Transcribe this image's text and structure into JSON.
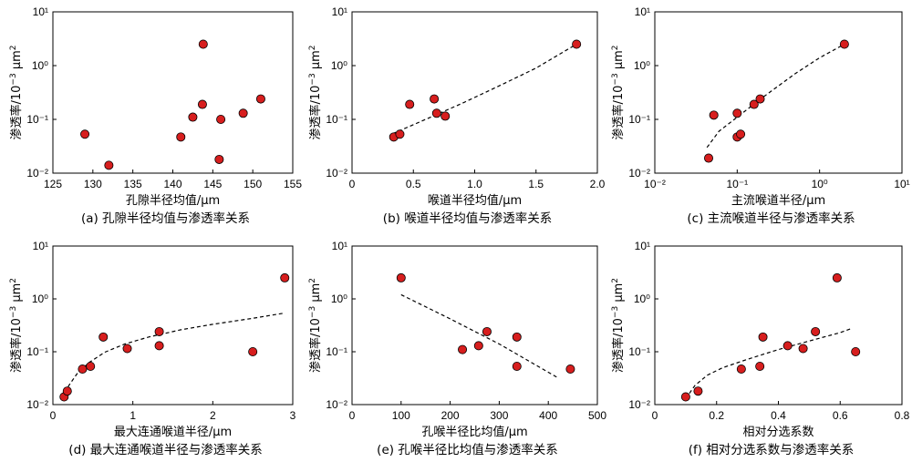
{
  "colors": {
    "point_fill": "#d71e1e",
    "axis": "#000000",
    "fit_line": "#000000"
  },
  "ylabel_parts": {
    "base": "渗透率/10",
    "exp": "−3",
    "unit": " μm",
    "unit_exp": "2"
  },
  "chart_data": [
    {
      "type": "scatter",
      "panel": "a",
      "caption": "(a) 孔隙半径均值与渗透率关系",
      "xlabel": "孔隙半径均值/μm",
      "xscale": "linear",
      "xlim": [
        125,
        155
      ],
      "xticks": [
        125,
        130,
        135,
        140,
        145,
        150,
        155
      ],
      "xtick_labels": [
        "125",
        "130",
        "135",
        "140",
        "145",
        "150",
        "155"
      ],
      "yscale": "log",
      "ylim": [
        0.01,
        10
      ],
      "points": [
        {
          "x": 129.0,
          "y": 0.053
        },
        {
          "x": 132.0,
          "y": 0.014
        },
        {
          "x": 141.0,
          "y": 0.047
        },
        {
          "x": 142.5,
          "y": 0.11
        },
        {
          "x": 143.8,
          "y": 2.5
        },
        {
          "x": 143.7,
          "y": 0.19
        },
        {
          "x": 145.8,
          "y": 0.018
        },
        {
          "x": 146.0,
          "y": 0.1
        },
        {
          "x": 148.8,
          "y": 0.13
        },
        {
          "x": 151.0,
          "y": 0.24
        }
      ],
      "fit": null
    },
    {
      "type": "scatter",
      "panel": "b",
      "caption": "(b) 喉道半径均值与渗透率关系",
      "xlabel": "喉道半径均值/μm",
      "xscale": "linear",
      "xlim": [
        0,
        2.0
      ],
      "xticks": [
        0,
        0.5,
        1.0,
        1.5,
        2.0
      ],
      "xtick_labels": [
        "0",
        "0.5",
        "1.0",
        "1.5",
        "2.0"
      ],
      "yscale": "log",
      "ylim": [
        0.01,
        10
      ],
      "points": [
        {
          "x": 0.34,
          "y": 0.047
        },
        {
          "x": 0.39,
          "y": 0.053
        },
        {
          "x": 0.47,
          "y": 0.19
        },
        {
          "x": 0.67,
          "y": 0.24
        },
        {
          "x": 0.69,
          "y": 0.13
        },
        {
          "x": 0.76,
          "y": 0.115
        },
        {
          "x": 1.83,
          "y": 2.5
        }
      ],
      "fit": {
        "x": [
          0.33,
          0.6,
          0.9,
          1.2,
          1.5,
          1.83
        ],
        "y": [
          0.054,
          0.1,
          0.2,
          0.42,
          0.9,
          2.5
        ]
      }
    },
    {
      "type": "scatter",
      "panel": "c",
      "caption": "(c) 主流喉道半径与渗透率关系",
      "xlabel": "主流喉道半径/μm",
      "xscale": "log",
      "xlim": [
        0.01,
        10
      ],
      "xticks": [
        0.01,
        0.1,
        1,
        10
      ],
      "xtick_labels": [
        "10⁻²",
        "10⁻¹",
        "10⁰",
        "10¹"
      ],
      "yscale": "log",
      "ylim": [
        0.01,
        10
      ],
      "points": [
        {
          "x": 0.045,
          "y": 0.019
        },
        {
          "x": 0.052,
          "y": 0.12
        },
        {
          "x": 0.1,
          "y": 0.13
        },
        {
          "x": 0.1,
          "y": 0.047
        },
        {
          "x": 0.11,
          "y": 0.053
        },
        {
          "x": 0.16,
          "y": 0.19
        },
        {
          "x": 0.19,
          "y": 0.24
        },
        {
          "x": 2.0,
          "y": 2.5
        }
      ],
      "fit": {
        "x": [
          0.043,
          0.06,
          0.1,
          0.2,
          0.5,
          1.0,
          2.0
        ],
        "y": [
          0.03,
          0.06,
          0.11,
          0.25,
          0.7,
          1.4,
          2.5
        ]
      }
    },
    {
      "type": "scatter",
      "panel": "d",
      "caption": "(d) 最大连通喉道半径与渗透率关系",
      "xlabel": "最大连通喉道半径/μm",
      "xscale": "linear",
      "xlim": [
        0,
        3
      ],
      "xticks": [
        0,
        1,
        2,
        3
      ],
      "xtick_labels": [
        "0",
        "1",
        "2",
        "3"
      ],
      "yscale": "log",
      "ylim": [
        0.01,
        10
      ],
      "points": [
        {
          "x": 0.14,
          "y": 0.014
        },
        {
          "x": 0.18,
          "y": 0.018
        },
        {
          "x": 0.37,
          "y": 0.047
        },
        {
          "x": 0.47,
          "y": 0.053
        },
        {
          "x": 0.63,
          "y": 0.19
        },
        {
          "x": 0.93,
          "y": 0.115
        },
        {
          "x": 1.33,
          "y": 0.24
        },
        {
          "x": 1.33,
          "y": 0.13
        },
        {
          "x": 2.5,
          "y": 0.1
        },
        {
          "x": 2.9,
          "y": 2.5
        }
      ],
      "fit": {
        "x": [
          0.13,
          0.2,
          0.3,
          0.45,
          0.65,
          0.9,
          1.2,
          1.6,
          2.0,
          2.5,
          2.9
        ],
        "y": [
          0.013,
          0.023,
          0.038,
          0.062,
          0.098,
          0.14,
          0.19,
          0.26,
          0.33,
          0.43,
          0.54
        ]
      }
    },
    {
      "type": "scatter",
      "panel": "e",
      "caption": "(e) 孔喉半径比均值与渗透率关系",
      "xlabel": "孔喉半径比均值/μm",
      "xscale": "linear",
      "xlim": [
        0,
        500
      ],
      "xticks": [
        0,
        100,
        200,
        300,
        400,
        500
      ],
      "xtick_labels": [
        "0",
        "100",
        "200",
        "300",
        "400",
        "500"
      ],
      "yscale": "log",
      "ylim": [
        0.01,
        10
      ],
      "points": [
        {
          "x": 100,
          "y": 2.5
        },
        {
          "x": 225,
          "y": 0.11
        },
        {
          "x": 258,
          "y": 0.13
        },
        {
          "x": 275,
          "y": 0.24
        },
        {
          "x": 336,
          "y": 0.19
        },
        {
          "x": 336,
          "y": 0.053
        },
        {
          "x": 445,
          "y": 0.047
        }
      ],
      "fit": {
        "x": [
          100,
          200,
          300,
          420
        ],
        "y": [
          1.2,
          0.42,
          0.14,
          0.032
        ]
      }
    },
    {
      "type": "scatter",
      "panel": "f",
      "caption": "(f) 相对分选系数与渗透率关系",
      "xlabel": "相对分选系数",
      "xscale": "linear",
      "xlim": [
        0,
        0.8
      ],
      "xticks": [
        0,
        0.2,
        0.4,
        0.6,
        0.8
      ],
      "xtick_labels": [
        "0",
        "0.2",
        "0.4",
        "0.6",
        "0.8"
      ],
      "yscale": "log",
      "ylim": [
        0.01,
        10
      ],
      "points": [
        {
          "x": 0.1,
          "y": 0.014
        },
        {
          "x": 0.14,
          "y": 0.018
        },
        {
          "x": 0.28,
          "y": 0.047
        },
        {
          "x": 0.34,
          "y": 0.053
        },
        {
          "x": 0.35,
          "y": 0.19
        },
        {
          "x": 0.43,
          "y": 0.13
        },
        {
          "x": 0.48,
          "y": 0.115
        },
        {
          "x": 0.52,
          "y": 0.24
        },
        {
          "x": 0.59,
          "y": 2.5
        },
        {
          "x": 0.65,
          "y": 0.1
        }
      ],
      "fit": {
        "x": [
          0.1,
          0.13,
          0.17,
          0.22,
          0.3,
          0.4,
          0.5,
          0.6,
          0.64
        ],
        "y": [
          0.013,
          0.023,
          0.036,
          0.05,
          0.072,
          0.11,
          0.16,
          0.23,
          0.28
        ]
      }
    }
  ]
}
